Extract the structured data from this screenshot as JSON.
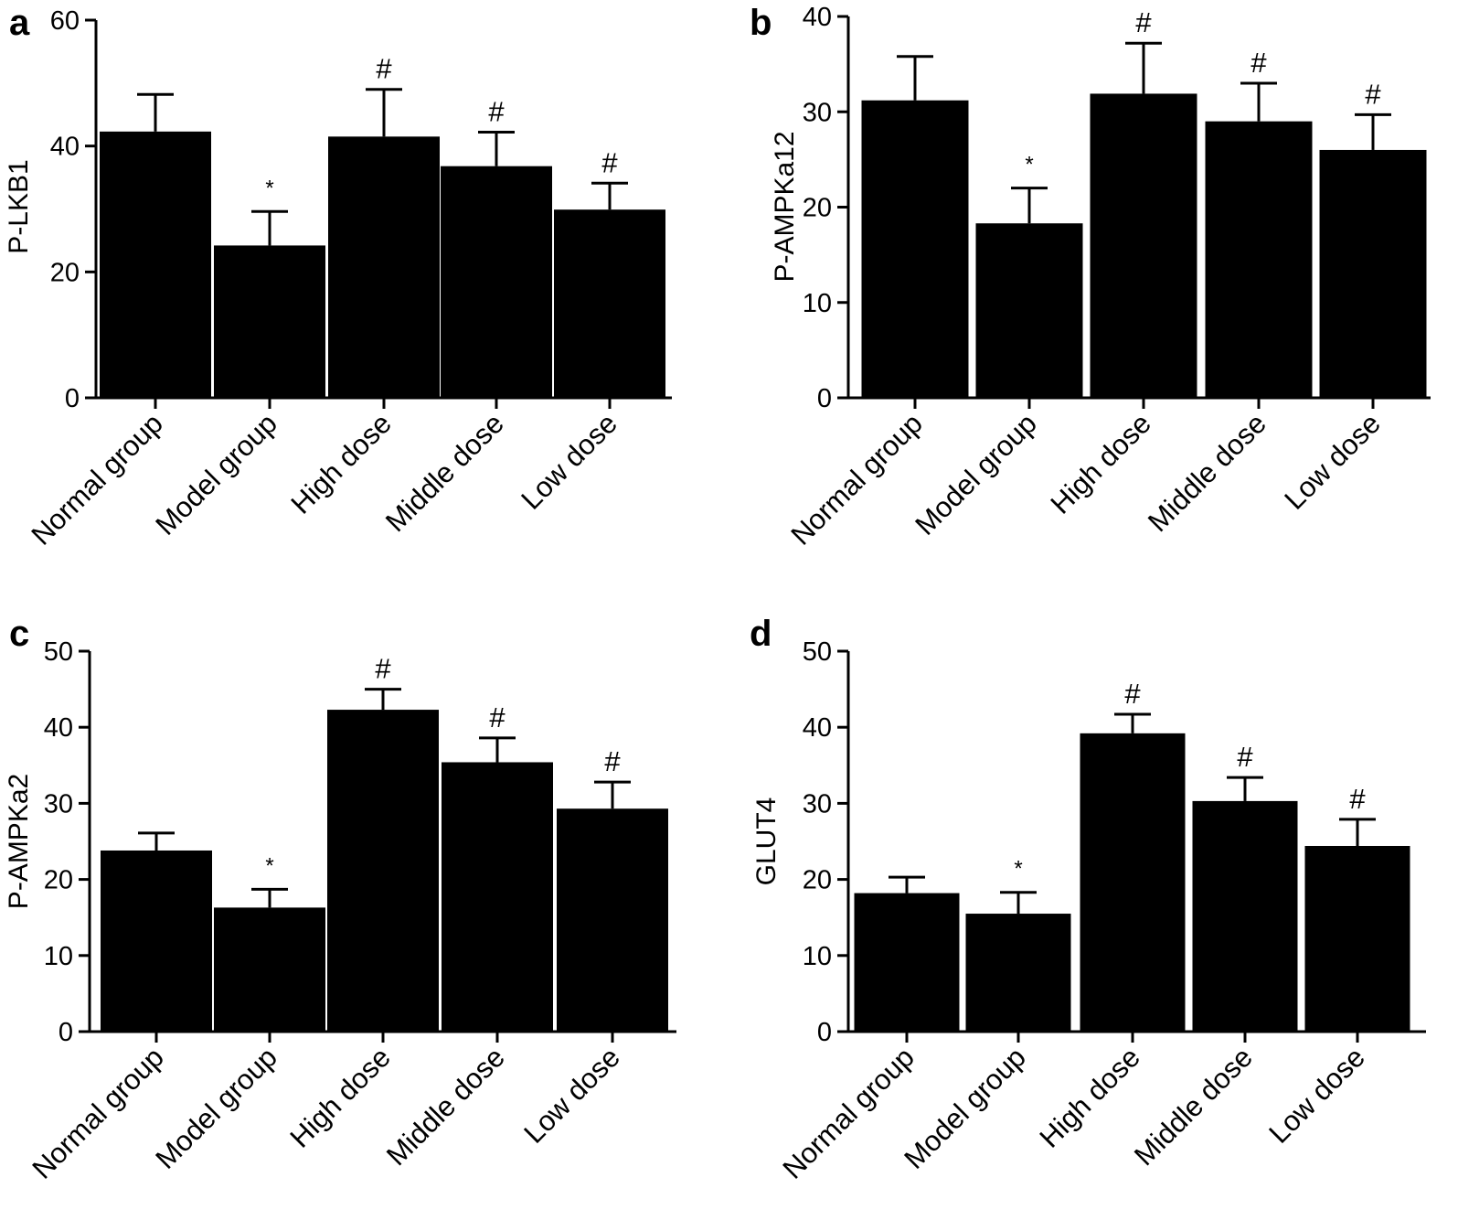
{
  "chart_data": [
    {
      "panel": "a",
      "type": "bar",
      "ylabel": "P-LKB1",
      "ylim": [
        0,
        60
      ],
      "yticks": [
        0,
        20,
        40,
        60
      ],
      "categories": [
        "Normal group",
        "Model group",
        "High dose",
        "Middle dose",
        "Low dose"
      ],
      "values": [
        42.3,
        24.2,
        41.5,
        36.8,
        29.9
      ],
      "errors": [
        5.9,
        5.4,
        7.5,
        5.4,
        4.2
      ],
      "markers": [
        "",
        "*",
        "#",
        "#",
        "#"
      ]
    },
    {
      "panel": "b",
      "type": "bar",
      "ylabel": "P-AMPKa12",
      "ylim": [
        0,
        40
      ],
      "yticks": [
        0,
        10,
        20,
        30,
        40
      ],
      "categories": [
        "Normal group",
        "Model group",
        "High dose",
        "Middle dose",
        "Low dose"
      ],
      "values": [
        31.2,
        18.3,
        31.9,
        29.0,
        26.0
      ],
      "errors": [
        4.6,
        3.7,
        5.3,
        4.0,
        3.7
      ],
      "markers": [
        "",
        "*",
        "#",
        "#",
        "#"
      ]
    },
    {
      "panel": "c",
      "type": "bar",
      "ylabel": "P-AMPKa2",
      "ylim": [
        0,
        50
      ],
      "yticks": [
        0,
        10,
        20,
        30,
        40,
        50
      ],
      "categories": [
        "Normal group",
        "Model group",
        "High dose",
        "Middle dose",
        "Low dose"
      ],
      "values": [
        23.8,
        16.3,
        42.3,
        35.4,
        29.3
      ],
      "errors": [
        2.3,
        2.4,
        2.7,
        3.2,
        3.5
      ],
      "markers": [
        "",
        "*",
        "#",
        "#",
        "#"
      ]
    },
    {
      "panel": "d",
      "type": "bar",
      "ylabel": "GLUT4",
      "ylim": [
        0,
        50
      ],
      "yticks": [
        0,
        10,
        20,
        30,
        40,
        50
      ],
      "categories": [
        "Normal group",
        "Model group",
        "High dose",
        "Middle dose",
        "Low dose"
      ],
      "values": [
        18.2,
        15.5,
        39.2,
        30.3,
        24.4
      ],
      "errors": [
        2.1,
        2.8,
        2.5,
        3.1,
        3.5
      ],
      "markers": [
        "",
        "*",
        "#",
        "#",
        "#"
      ]
    }
  ]
}
